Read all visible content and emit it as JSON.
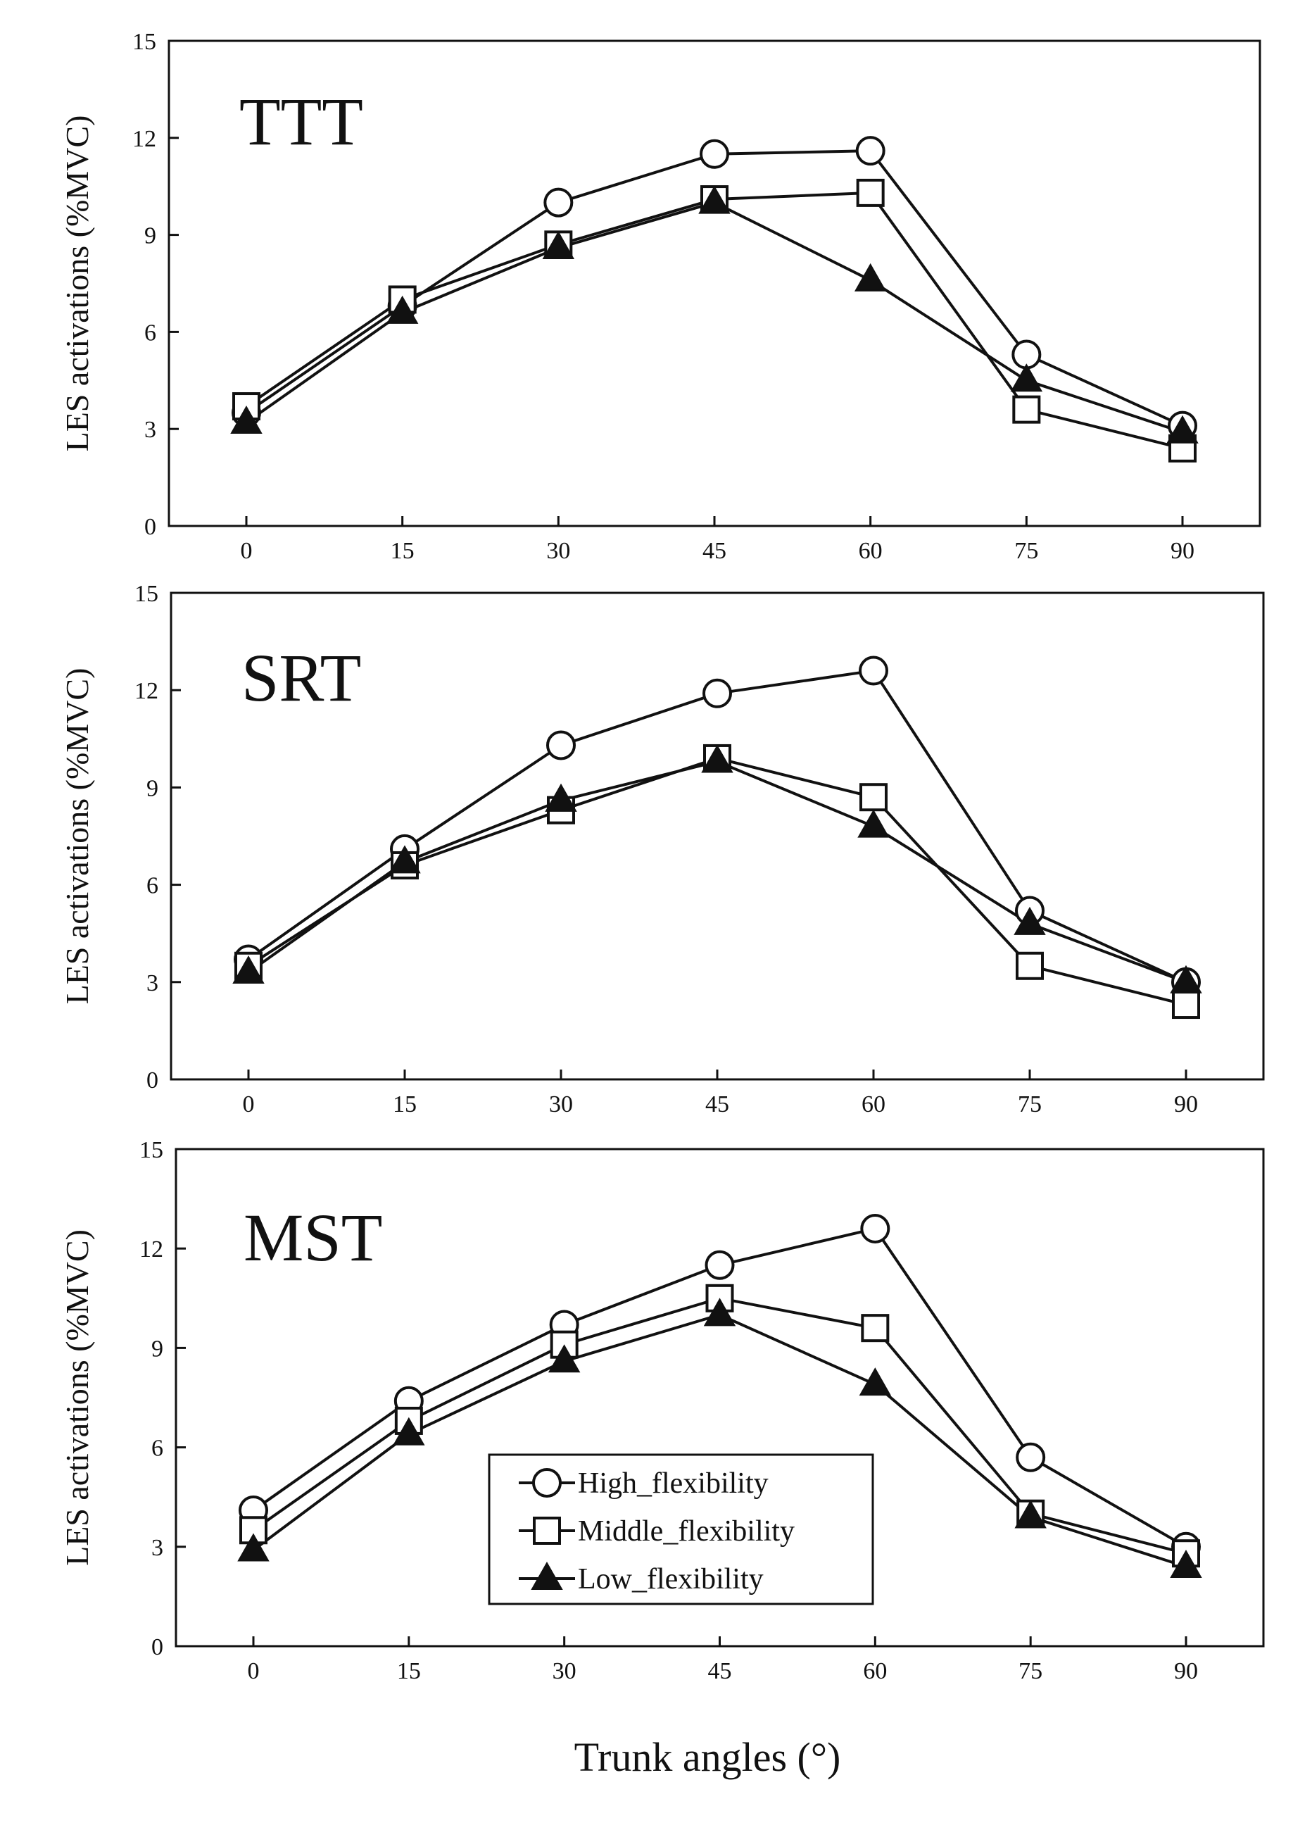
{
  "chart_data": [
    {
      "type": "line",
      "title": "TTT",
      "xlabel": "",
      "ylabel": "LES activations (%MVC)",
      "x": [
        0,
        15,
        30,
        45,
        60,
        75,
        90
      ],
      "xticks": [
        "0",
        "15",
        "30",
        "45",
        "60",
        "75",
        "90"
      ],
      "yticks": [
        "0",
        "3",
        "6",
        "9",
        "12",
        "15"
      ],
      "ylim": [
        0,
        15
      ],
      "grid": false,
      "series": [
        {
          "name": "High_flexibility",
          "marker": "circle-open",
          "values": [
            3.5,
            6.8,
            10.0,
            11.5,
            11.6,
            5.3,
            3.1
          ]
        },
        {
          "name": "Middle_flexibility",
          "marker": "square-open",
          "values": [
            3.7,
            7.0,
            8.7,
            10.1,
            10.3,
            3.6,
            2.4
          ]
        },
        {
          "name": "Low_flexibility",
          "marker": "triangle-filled",
          "values": [
            3.2,
            6.6,
            8.6,
            10.0,
            7.6,
            4.5,
            2.9
          ]
        }
      ]
    },
    {
      "type": "line",
      "title": "SRT",
      "xlabel": "",
      "ylabel": "LES activations (%MVC)",
      "x": [
        0,
        15,
        30,
        45,
        60,
        75,
        90
      ],
      "xticks": [
        "0",
        "15",
        "30",
        "45",
        "60",
        "75",
        "90"
      ],
      "yticks": [
        "0",
        "3",
        "6",
        "9",
        "12",
        "15"
      ],
      "ylim": [
        0,
        15
      ],
      "grid": false,
      "series": [
        {
          "name": "High_flexibility",
          "marker": "circle-open",
          "values": [
            3.7,
            7.1,
            10.3,
            11.9,
            12.6,
            5.2,
            3.0
          ]
        },
        {
          "name": "Middle_flexibility",
          "marker": "square-open",
          "values": [
            3.5,
            6.6,
            8.3,
            9.9,
            8.7,
            3.5,
            2.3
          ]
        },
        {
          "name": "Low_flexibility",
          "marker": "triangle-filled",
          "values": [
            3.3,
            6.7,
            8.6,
            9.8,
            7.8,
            4.8,
            3.0
          ]
        }
      ]
    },
    {
      "type": "line",
      "title": "MST",
      "xlabel": "Trunk angles (°)",
      "ylabel": "LES activations (%MVC)",
      "x": [
        0,
        15,
        30,
        45,
        60,
        75,
        90
      ],
      "xticks": [
        "0",
        "15",
        "30",
        "45",
        "60",
        "75",
        "90"
      ],
      "yticks": [
        "0",
        "3",
        "6",
        "9",
        "12",
        "15"
      ],
      "ylim": [
        0,
        15
      ],
      "grid": false,
      "legend": "lower-center",
      "series": [
        {
          "name": "High_flexibility",
          "marker": "circle-open",
          "values": [
            4.1,
            7.4,
            9.7,
            11.5,
            12.6,
            5.7,
            3.0
          ]
        },
        {
          "name": "Middle_flexibility",
          "marker": "square-open",
          "values": [
            3.5,
            6.8,
            9.1,
            10.5,
            9.6,
            4.0,
            2.8
          ]
        },
        {
          "name": "Low_flexibility",
          "marker": "triangle-filled",
          "values": [
            2.9,
            6.4,
            8.6,
            10.0,
            7.9,
            3.9,
            2.4
          ]
        }
      ]
    }
  ],
  "legend": {
    "items": [
      {
        "label": "High_flexibility",
        "marker": "circle-open"
      },
      {
        "label": "Middle_flexibility",
        "marker": "square-open"
      },
      {
        "label": "Low_flexibility",
        "marker": "triangle-filled"
      }
    ]
  },
  "x_axis_title": "Trunk angles (°)"
}
